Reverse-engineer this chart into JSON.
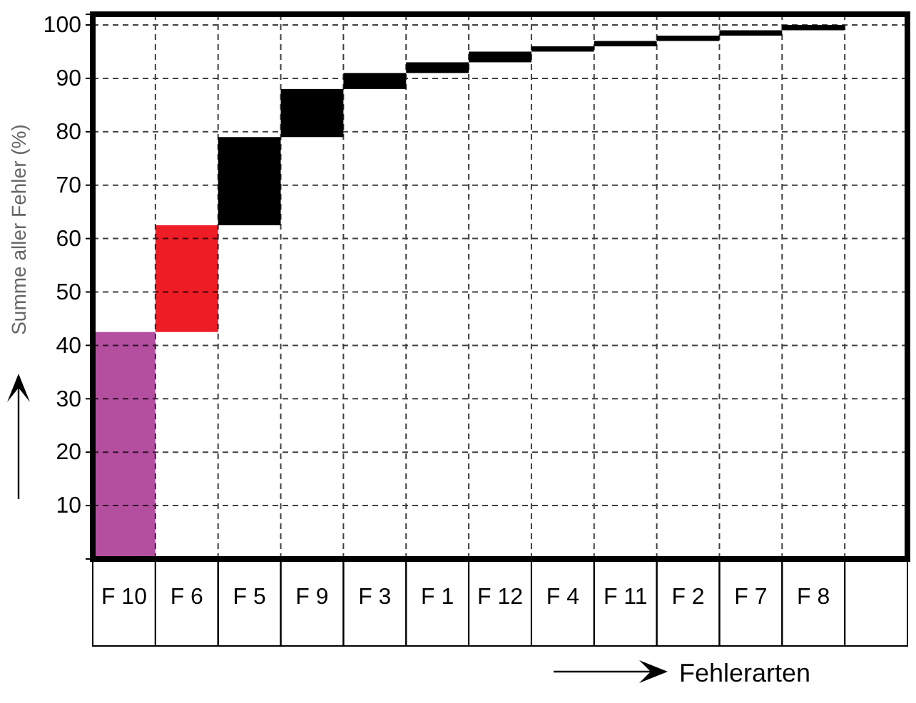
{
  "chart_data": {
    "type": "bar",
    "xlabel": "Fehlerarten",
    "ylabel": "Summe aller Fehler (%)",
    "categories": [
      "F 10",
      "F 6",
      "F 5",
      "F 9",
      "F 3",
      "F 1",
      "F 12",
      "F 4",
      "F 11",
      "F 2",
      "F 7",
      "F 8",
      null
    ],
    "values": [
      42.5,
      20,
      16.5,
      9,
      3,
      2,
      2,
      1,
      1,
      1,
      1,
      1,
      null
    ],
    "base": [
      0,
      42.5,
      62.5,
      79,
      88,
      91,
      93,
      95,
      96,
      97,
      98,
      99,
      null
    ],
    "colors": [
      "#b44fa0",
      "#ee1c25",
      "#000000",
      "#000000",
      "#000000",
      "#000000",
      "#000000",
      "#000000",
      "#000000",
      "#000000",
      "#000000",
      "#000000",
      null
    ],
    "ylim": [
      0,
      102
    ],
    "yticks": [
      10,
      20,
      30,
      40,
      50,
      60,
      70,
      80,
      90,
      100
    ],
    "grid": true
  }
}
